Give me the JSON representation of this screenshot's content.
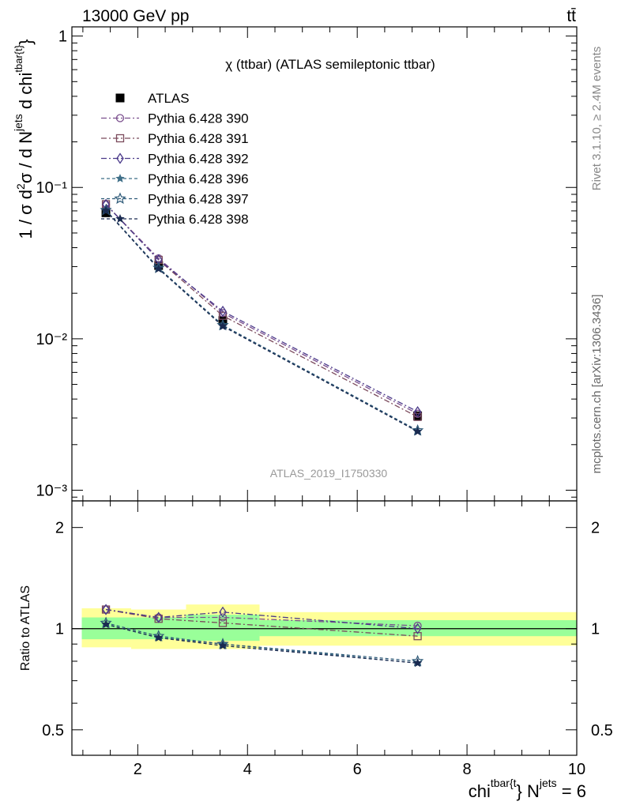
{
  "header": {
    "left": "13000 GeV pp",
    "right": "tt̄"
  },
  "side_labels": {
    "rivet": "Rivet 3.1.10, ≥ 2.4M events",
    "mcplots": "mcplots.cern.ch [arXiv:1306.3436]"
  },
  "chart_data": [
    {
      "type": "line",
      "panel": "main",
      "title": "χ (ttbar) (ATLAS semileptonic ttbar)",
      "watermark": "ATLAS_2019_I1750330",
      "ylabel": "1 / σ d²σ / d N^jets d chi^tbar{t}",
      "yscale": "log",
      "ylim": [
        0.00085,
        1.15
      ],
      "xlim": [
        0.8,
        10
      ],
      "yticks": [
        {
          "value": 1,
          "label": "1"
        },
        {
          "value": 0.1,
          "label": "10⁻¹"
        },
        {
          "value": 0.01,
          "label": "10⁻²"
        },
        {
          "value": 0.001,
          "label": "10⁻³"
        }
      ],
      "legend_position": "top-left",
      "x": [
        1.42,
        2.38,
        3.55,
        7.1
      ],
      "series": [
        {
          "name": "ATLAS",
          "marker": "filled-square",
          "color": "#000000",
          "values": [
            0.068,
            0.0305,
            0.0132,
            0.0031
          ]
        },
        {
          "name": "Pythia 6.428 390",
          "marker": "open-circle",
          "color": "#7b4f8e",
          "dash": "dashdot",
          "values": [
            0.077,
            0.034,
            0.0148,
            0.0032
          ]
        },
        {
          "name": "Pythia 6.428 391",
          "marker": "open-square",
          "color": "#7b4a5c",
          "dash": "dashdot",
          "values": [
            0.0775,
            0.0332,
            0.0142,
            0.00305
          ]
        },
        {
          "name": "Pythia 6.428 392",
          "marker": "open-diamond",
          "color": "#4b3a8a",
          "dash": "dashdot",
          "values": [
            0.0772,
            0.0333,
            0.0152,
            0.0033
          ]
        },
        {
          "name": "Pythia 6.428 396",
          "marker": "filled-star",
          "color": "#3f6f88",
          "dash": "dashed",
          "values": [
            0.0705,
            0.0292,
            0.0122,
            0.00245
          ]
        },
        {
          "name": "Pythia 6.428 397",
          "marker": "open-star",
          "color": "#2e5a78",
          "dash": "dashed",
          "values": [
            0.0708,
            0.0294,
            0.0123,
            0.00248
          ]
        },
        {
          "name": "Pythia 6.428 398",
          "marker": "filled-star",
          "color": "#1a2a50",
          "dash": "dashed",
          "values": [
            0.0703,
            0.029,
            0.0121,
            0.00244
          ]
        }
      ]
    },
    {
      "type": "line",
      "panel": "ratio",
      "ylabel": "Ratio to ATLAS",
      "xlabel": "chi^tbar{t} N^jets = 6",
      "yscale": "log",
      "ylim": [
        0.42,
        2.4
      ],
      "xlim": [
        0.8,
        10
      ],
      "yticks": [
        {
          "value": 2,
          "label": "2"
        },
        {
          "value": 1,
          "label": "1"
        },
        {
          "value": 0.5,
          "label": "0.5"
        }
      ],
      "xticks": [
        2,
        4,
        6,
        8,
        10
      ],
      "bins": [
        {
          "lo": 0.98,
          "hi": 1.88,
          "green": [
            0.93,
            1.08
          ],
          "yellow": [
            0.88,
            1.15
          ]
        },
        {
          "lo": 1.88,
          "hi": 2.88,
          "green": [
            0.93,
            1.08
          ],
          "yellow": [
            0.87,
            1.14
          ]
        },
        {
          "lo": 2.88,
          "hi": 4.22,
          "green": [
            0.92,
            1.1
          ],
          "yellow": [
            0.87,
            1.18
          ]
        },
        {
          "lo": 4.22,
          "hi": 10.0,
          "green": [
            0.95,
            1.06
          ],
          "yellow": [
            0.89,
            1.12
          ]
        }
      ],
      "x": [
        1.42,
        2.38,
        3.55,
        7.1
      ],
      "series": [
        {
          "name": "Pythia 6.428 390",
          "values": [
            1.14,
            1.08,
            1.08,
            1.02
          ]
        },
        {
          "name": "Pythia 6.428 391",
          "values": [
            1.14,
            1.07,
            1.04,
            0.95
          ]
        },
        {
          "name": "Pythia 6.428 392",
          "values": [
            1.14,
            1.08,
            1.12,
            1.0
          ]
        },
        {
          "name": "Pythia 6.428 396",
          "values": [
            1.03,
            0.94,
            0.9,
            0.79
          ]
        },
        {
          "name": "Pythia 6.428 397",
          "values": [
            1.04,
            0.95,
            0.9,
            0.8
          ]
        },
        {
          "name": "Pythia 6.428 398",
          "values": [
            1.03,
            0.94,
            0.89,
            0.79
          ]
        }
      ]
    }
  ]
}
